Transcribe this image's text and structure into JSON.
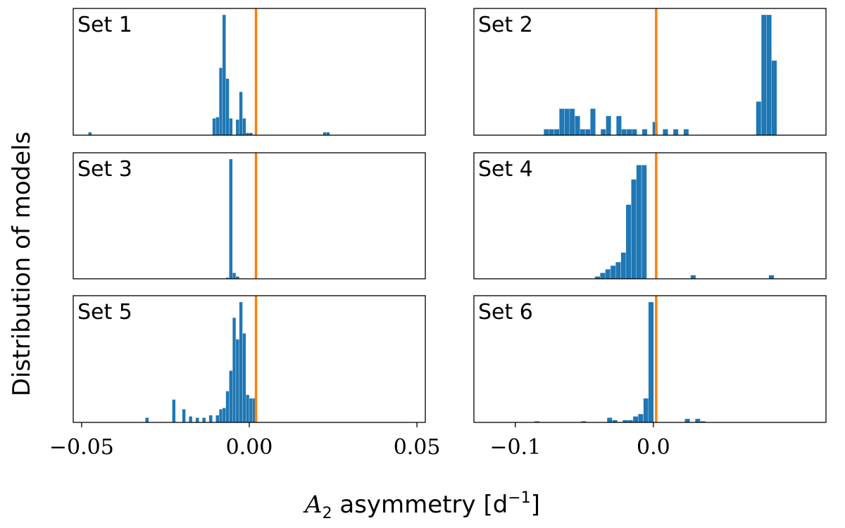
{
  "chart_data": [
    {
      "type": "bar",
      "panel": "Set 1",
      "title": "Set 1",
      "xlim": [
        -0.0525,
        0.0525
      ],
      "observed_value": 0.002,
      "observed_color": "#ff7f0e",
      "bar_color": "#1f77b4",
      "bin_width": 0.001,
      "bins": [
        {
          "x": -0.0475,
          "h": 0.025
        },
        {
          "x": -0.0105,
          "h": 0.14
        },
        {
          "x": -0.0095,
          "h": 0.15
        },
        {
          "x": -0.0085,
          "h": 0.56
        },
        {
          "x": -0.0075,
          "h": 1.0
        },
        {
          "x": -0.0065,
          "h": 0.47
        },
        {
          "x": -0.0055,
          "h": 0.14
        },
        {
          "x": -0.0035,
          "h": 0.13
        },
        {
          "x": -0.0025,
          "h": 0.36
        },
        {
          "x": -0.0015,
          "h": 0.14
        },
        {
          "x": -0.0005,
          "h": 0.02
        },
        {
          "x": 0.0005,
          "h": 0.02
        },
        {
          "x": 0.0225,
          "h": 0.025
        },
        {
          "x": 0.0235,
          "h": 0.025
        }
      ]
    },
    {
      "type": "bar",
      "panel": "Set 2",
      "title": "Set 2",
      "xlim": [
        -0.13,
        0.125
      ],
      "observed_value": 0.002,
      "observed_color": "#ff7f0e",
      "bar_color": "#1f77b4",
      "bin_width": 0.00375,
      "bins": [
        {
          "x": -0.0775,
          "h": 0.05
        },
        {
          "x": -0.0738,
          "h": 0.05
        },
        {
          "x": -0.07,
          "h": 0.05
        },
        {
          "x": -0.0663,
          "h": 0.22
        },
        {
          "x": -0.0625,
          "h": 0.22
        },
        {
          "x": -0.0588,
          "h": 0.22
        },
        {
          "x": -0.055,
          "h": 0.16
        },
        {
          "x": -0.0513,
          "h": 0.05
        },
        {
          "x": -0.0475,
          "h": 0.05
        },
        {
          "x": -0.0438,
          "h": 0.22
        },
        {
          "x": -0.0363,
          "h": 0.05
        },
        {
          "x": -0.0325,
          "h": 0.16
        },
        {
          "x": -0.025,
          "h": 0.16
        },
        {
          "x": -0.0213,
          "h": 0.05
        },
        {
          "x": -0.0175,
          "h": 0.05
        },
        {
          "x": -0.0138,
          "h": 0.05
        },
        {
          "x": -0.0063,
          "h": 0.05
        },
        {
          "x": 0.0012,
          "h": 0.11
        },
        {
          "x": 0.0087,
          "h": 0.05
        },
        {
          "x": 0.0162,
          "h": 0.05
        },
        {
          "x": 0.0237,
          "h": 0.05
        },
        {
          "x": 0.0762,
          "h": 0.28
        },
        {
          "x": 0.08,
          "h": 1.0
        },
        {
          "x": 0.0837,
          "h": 1.0
        },
        {
          "x": 0.0875,
          "h": 0.62
        }
      ]
    },
    {
      "type": "bar",
      "panel": "Set 3",
      "title": "Set 3",
      "xlim": [
        -0.0525,
        0.0525
      ],
      "observed_value": 0.002,
      "observed_color": "#ff7f0e",
      "bar_color": "#1f77b4",
      "bin_width": 0.001,
      "bins": [
        {
          "x": -0.0065,
          "h": 0.01
        },
        {
          "x": -0.0055,
          "h": 1.0
        },
        {
          "x": -0.0045,
          "h": 0.05
        },
        {
          "x": -0.0035,
          "h": 0.02
        }
      ]
    },
    {
      "type": "bar",
      "panel": "Set 4",
      "title": "Set 4",
      "xlim": [
        -0.13,
        0.125
      ],
      "observed_value": 0.002,
      "observed_color": "#ff7f0e",
      "bar_color": "#1f77b4",
      "bin_width": 0.00375,
      "bins": [
        {
          "x": -0.0405,
          "h": 0.02
        },
        {
          "x": -0.0367,
          "h": 0.05
        },
        {
          "x": -0.033,
          "h": 0.08
        },
        {
          "x": -0.0292,
          "h": 0.11
        },
        {
          "x": -0.0255,
          "h": 0.14
        },
        {
          "x": -0.0217,
          "h": 0.22
        },
        {
          "x": -0.018,
          "h": 0.62
        },
        {
          "x": -0.0142,
          "h": 0.83
        },
        {
          "x": -0.0105,
          "h": 0.95
        },
        {
          "x": -0.0067,
          "h": 0.95
        },
        {
          "x": 0.0288,
          "h": 0.03
        },
        {
          "x": 0.0855,
          "h": 0.03
        }
      ]
    },
    {
      "type": "bar",
      "panel": "Set 5",
      "title": "Set 5",
      "xlim": [
        -0.0525,
        0.0525
      ],
      "observed_value": 0.002,
      "observed_color": "#ff7f0e",
      "bar_color": "#1f77b4",
      "bin_width": 0.001,
      "bins": [
        {
          "x": -0.0305,
          "h": 0.04
        },
        {
          "x": -0.0225,
          "h": 0.19
        },
        {
          "x": -0.0195,
          "h": 0.11
        },
        {
          "x": -0.0175,
          "h": 0.05
        },
        {
          "x": -0.0155,
          "h": 0.04
        },
        {
          "x": -0.0135,
          "h": 0.04
        },
        {
          "x": -0.0115,
          "h": 0.06
        },
        {
          "x": -0.0095,
          "h": 0.06
        },
        {
          "x": -0.0085,
          "h": 0.11
        },
        {
          "x": -0.0075,
          "h": 0.12
        },
        {
          "x": -0.0065,
          "h": 0.26
        },
        {
          "x": -0.0055,
          "h": 0.43
        },
        {
          "x": -0.0045,
          "h": 0.87
        },
        {
          "x": -0.0035,
          "h": 0.69
        },
        {
          "x": -0.0025,
          "h": 1.0
        },
        {
          "x": -0.0015,
          "h": 0.74
        },
        {
          "x": -0.0005,
          "h": 0.23
        },
        {
          "x": 0.0005,
          "h": 0.2
        },
        {
          "x": 0.0015,
          "h": 0.2
        }
      ]
    },
    {
      "type": "bar",
      "panel": "Set 6",
      "title": "Set 6",
      "xlim": [
        -0.13,
        0.125
      ],
      "observed_value": 0.002,
      "observed_color": "#ff7f0e",
      "bar_color": "#1f77b4",
      "bin_width": 0.00375,
      "bins": [
        {
          "x": -0.0843,
          "h": 0.01
        },
        {
          "x": -0.0505,
          "h": 0.01
        },
        {
          "x": -0.0317,
          "h": 0.04
        },
        {
          "x": -0.0279,
          "h": 0.02
        },
        {
          "x": -0.0204,
          "h": 0.02
        },
        {
          "x": -0.0167,
          "h": 0.02
        },
        {
          "x": -0.0129,
          "h": 0.05
        },
        {
          "x": -0.0092,
          "h": 0.07
        },
        {
          "x": -0.0054,
          "h": 0.2
        },
        {
          "x": -0.0017,
          "h": 1.0
        },
        {
          "x": 0.0246,
          "h": 0.03
        },
        {
          "x": 0.0321,
          "h": 0.03
        },
        {
          "x": 0.0358,
          "h": 0.01
        }
      ]
    }
  ],
  "x_ticks_left": [
    {
      "value": -0.05,
      "label": "−0.05"
    },
    {
      "value": 0.0,
      "label": "0.00"
    },
    {
      "value": 0.05,
      "label": "0.05"
    }
  ],
  "x_ticks_right": [
    {
      "value": -0.1,
      "label": "−0.1"
    },
    {
      "value": 0.0,
      "label": "0.0"
    }
  ],
  "ylabel": "Distribution of models",
  "xlabel_symbol": "A",
  "xlabel_subscript": "2",
  "xlabel_text": "asymmetry [d",
  "xlabel_superscript": "−1",
  "xlabel_close": "]"
}
